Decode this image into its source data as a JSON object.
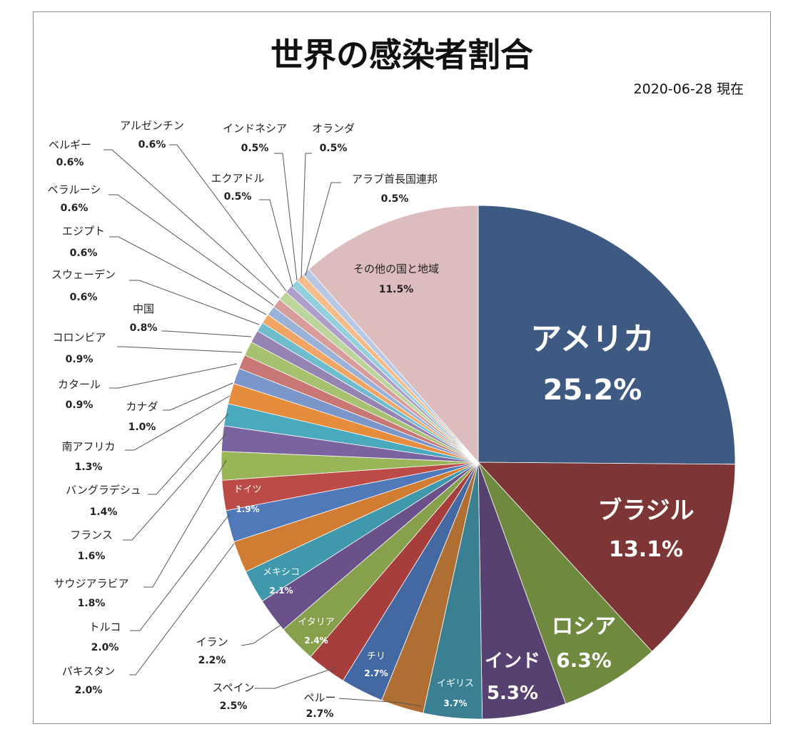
{
  "chart_data": {
    "type": "pie",
    "title": "世界の感染者割合",
    "subtitle": "2020-06-28 現在",
    "slices": [
      {
        "label": "アメリカ",
        "value": 25.2,
        "value_label": "25.2%",
        "color": "#3f5a82"
      },
      {
        "label": "ブラジル",
        "value": 13.1,
        "value_label": "13.1%",
        "color": "#7d3535"
      },
      {
        "label": "ロシア",
        "value": 6.3,
        "value_label": "6.3%",
        "color": "#6f8a3e"
      },
      {
        "label": "インド",
        "value": 5.3,
        "value_label": "5.3%",
        "color": "#574170"
      },
      {
        "label": "イギリス",
        "value": 3.7,
        "value_label": "3.7%",
        "color": "#3a7f92"
      },
      {
        "label": "ペルー",
        "value": 2.7,
        "value_label": "2.7%",
        "color": "#b06f32"
      },
      {
        "label": "チリ",
        "value": 2.7,
        "value_label": "2.7%",
        "color": "#4468a2"
      },
      {
        "label": "スペイン",
        "value": 2.5,
        "value_label": "2.5%",
        "color": "#a53e3c"
      },
      {
        "label": "イタリア",
        "value": 2.4,
        "value_label": "2.4%",
        "color": "#86a04c"
      },
      {
        "label": "イラン",
        "value": 2.2,
        "value_label": "2.2%",
        "color": "#6a5189"
      },
      {
        "label": "メキシコ",
        "value": 2.1,
        "value_label": "2.1%",
        "color": "#3f98ab"
      },
      {
        "label": "パキスタン",
        "value": 2.0,
        "value_label": "2.0%",
        "color": "#d07c33"
      },
      {
        "label": "トルコ",
        "value": 2.0,
        "value_label": "2.0%",
        "color": "#4f79b8"
      },
      {
        "label": "ドイツ",
        "value": 1.9,
        "value_label": "1.9%",
        "color": "#bc4a47"
      },
      {
        "label": "サウジアラビア",
        "value": 1.8,
        "value_label": "1.8%",
        "color": "#98b557"
      },
      {
        "label": "フランス",
        "value": 1.6,
        "value_label": "1.6%",
        "color": "#7b63a0"
      },
      {
        "label": "バングラデシュ",
        "value": 1.4,
        "value_label": "1.4%",
        "color": "#4ba9bd"
      },
      {
        "label": "南アフリカ",
        "value": 1.3,
        "value_label": "1.3%",
        "color": "#e68c3d"
      },
      {
        "label": "カナダ",
        "value": 1.0,
        "value_label": "1.0%",
        "color": "#7b96c8"
      },
      {
        "label": "カタール",
        "value": 0.9,
        "value_label": "0.9%",
        "color": "#c97774"
      },
      {
        "label": "コロンビア",
        "value": 0.9,
        "value_label": "0.9%",
        "color": "#a6c16f"
      },
      {
        "label": "中国",
        "value": 0.8,
        "value_label": "0.8%",
        "color": "#9583b4"
      },
      {
        "label": "スウェーデン",
        "value": 0.6,
        "value_label": "0.6%",
        "color": "#6fbccc"
      },
      {
        "label": "エジプト",
        "value": 0.6,
        "value_label": "0.6%",
        "color": "#f0a564"
      },
      {
        "label": "ベラルーシ",
        "value": 0.6,
        "value_label": "0.6%",
        "color": "#9ab2d8"
      },
      {
        "label": "ベルギー",
        "value": 0.6,
        "value_label": "0.6%",
        "color": "#d89d9b"
      },
      {
        "label": "アルゼンチン",
        "value": 0.6,
        "value_label": "0.6%",
        "color": "#bcd59c"
      },
      {
        "label": "エクアドル",
        "value": 0.5,
        "value_label": "0.5%",
        "color": "#ae9ec9"
      },
      {
        "label": "インドネシア",
        "value": 0.5,
        "value_label": "0.5%",
        "color": "#93cfdc"
      },
      {
        "label": "オランダ",
        "value": 0.5,
        "value_label": "0.5%",
        "color": "#f5bd8c"
      },
      {
        "label": "アラブ首長国連邦",
        "value": 0.5,
        "value_label": "0.5%",
        "color": "#b7c8e4"
      },
      {
        "label": "その他の国と地域",
        "value": 11.5,
        "value_label": "11.5%",
        "color": "#dcbcbc"
      }
    ]
  }
}
